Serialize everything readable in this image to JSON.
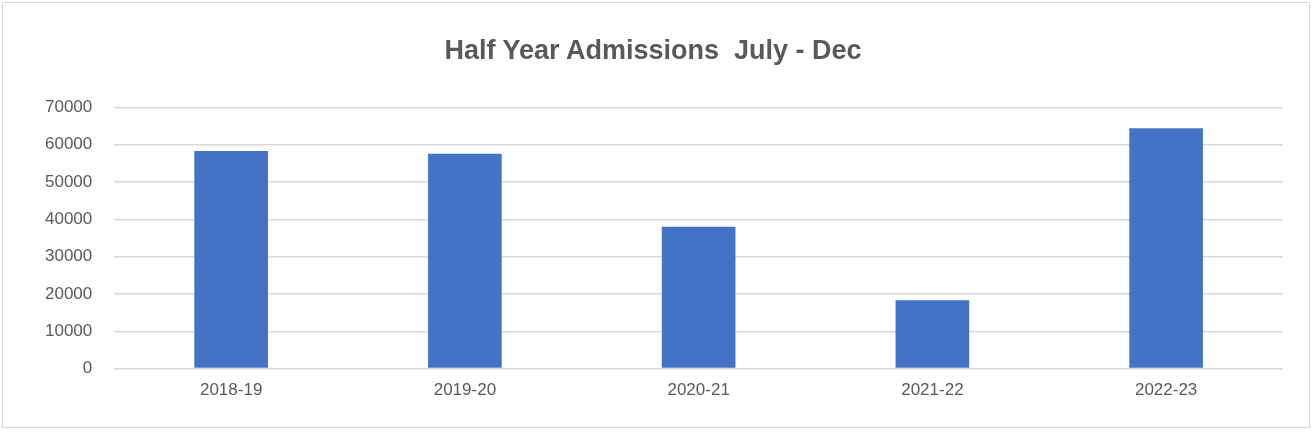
{
  "chart_data": {
    "type": "bar",
    "title": "Half Year Admissions  July - Dec",
    "categories": [
      "2018-19",
      "2019-20",
      "2020-21",
      "2021-22",
      "2022-23"
    ],
    "values": [
      58300,
      57600,
      38000,
      18300,
      64400
    ],
    "color": "#4472c4",
    "ylim": [
      0,
      70000
    ],
    "yticks": [
      0,
      10000,
      20000,
      30000,
      40000,
      50000,
      60000,
      70000
    ],
    "grid": "y",
    "legend": false
  }
}
